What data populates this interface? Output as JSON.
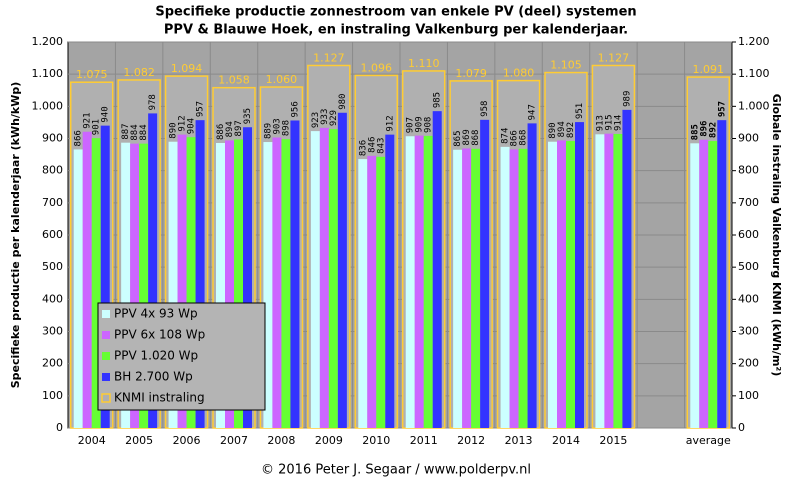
{
  "chart_data": {
    "type": "bar",
    "title": [
      "Specifieke productie zonnestroom van enkele PV (deel) systemen",
      "PPV & Blauwe Hoek, en instraling Valkenburg per kalenderjaar."
    ],
    "ylabel": "Specifieke productie per kalenderjaar (kWh/kWp)",
    "y2label": "Globale instraling Valkenburg KNMI (kWh/m²)",
    "source": "© 2016 Peter J. Segaar / www.polderpv.nl",
    "categories": [
      "2004",
      "2005",
      "2006",
      "2007",
      "2008",
      "2009",
      "2010",
      "2011",
      "2012",
      "2013",
      "2014",
      "2015",
      null,
      "average"
    ],
    "series": [
      {
        "name": "PPV 4x 93 Wp",
        "color": "#ccffff",
        "values": [
          866,
          887,
          890,
          886,
          889,
          923,
          836,
          907,
          865,
          874,
          890,
          913,
          null,
          885
        ]
      },
      {
        "name": "PPV 6x 108 Wp",
        "color": "#cc66ff",
        "values": [
          921,
          884,
          912,
          894,
          903,
          933,
          846,
          909,
          869,
          866,
          894,
          915,
          null,
          896
        ]
      },
      {
        "name": "PPV 1.020 Wp",
        "color": "#66ff33",
        "values": [
          901,
          884,
          904,
          897,
          898,
          929,
          843,
          908,
          868,
          868,
          892,
          914,
          null,
          892
        ]
      },
      {
        "name": "BH 2.700 Wp",
        "color": "#3333ff",
        "values": [
          940,
          978,
          957,
          935,
          956,
          980,
          912,
          985,
          958,
          947,
          951,
          989,
          null,
          957
        ]
      },
      {
        "name": "KNMI instraling",
        "color": "#ffcc33",
        "axis": "y2",
        "values": [
          1075,
          1082,
          1094,
          1058,
          1060,
          1127,
          1096,
          1110,
          1079,
          1080,
          1105,
          1127,
          null,
          1091
        ],
        "value_labels": [
          "1.075",
          "1.082",
          "1.094",
          "1.058",
          "1.060",
          "1.127",
          "1.096",
          "1.110",
          "1.079",
          "1.080",
          "1.105",
          "1.127",
          null,
          "1.091"
        ]
      }
    ],
    "ylim": [
      0,
      1200
    ],
    "yticks": [
      0,
      100,
      200,
      300,
      400,
      500,
      600,
      700,
      800,
      900,
      {
        "value": 1000,
        "label": "1.000"
      },
      {
        "value": 1100,
        "label": "1.100"
      },
      {
        "value": 1200,
        "label": "1.200"
      }
    ],
    "y2lim": [
      0,
      1200
    ],
    "y2ticks": [
      0,
      100,
      200,
      300,
      400,
      500,
      600,
      700,
      800,
      900,
      {
        "value": 1000,
        "label": "1.000"
      },
      {
        "value": 1100,
        "label": "1.100"
      },
      {
        "value": 1200,
        "label": "1.200"
      }
    ],
    "grid": true,
    "legend": "lower left"
  }
}
